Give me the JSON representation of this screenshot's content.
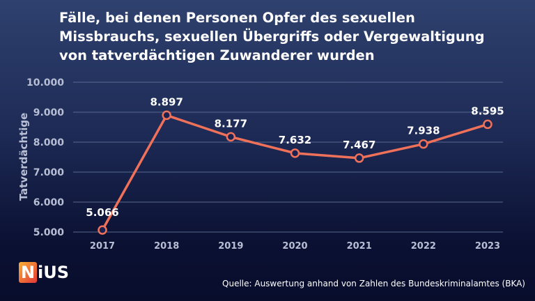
{
  "title_lines": [
    "Fälle, bei denen Personen Opfer des sexuellen",
    "Missbrauchs, sexuellen Übergriffs oder Vergewaltigung",
    "von tatverdächtigen Zuwanderer wurden"
  ],
  "logo": {
    "n": "N",
    "rest": "iUS"
  },
  "source": "Quelle: Auswertung anhand von Zahlen des Bundeskriminalamtes (BKA)",
  "colors": {
    "line": "#f0715a",
    "marker_fill": "#1a2350",
    "grid": "#5a6890",
    "tick": "#b8bfd4"
  },
  "chart_data": {
    "type": "line",
    "title": "Fälle, bei denen Personen Opfer des sexuellen Missbrauchs, sexuellen Übergriffs oder Vergewaltigung von tatverdächtigen Zuwanderer wurden",
    "xlabel": "",
    "ylabel": "Tatverdächtige",
    "categories": [
      "2017",
      "2018",
      "2019",
      "2020",
      "2021",
      "2022",
      "2023"
    ],
    "values": [
      5066,
      8897,
      8177,
      7632,
      7467,
      7938,
      8595
    ],
    "data_labels": [
      "5.066",
      "8.897",
      "8.177",
      "7.632",
      "7.467",
      "7.938",
      "8.595"
    ],
    "ylim": [
      5000,
      10000
    ],
    "yticks": [
      5000,
      6000,
      7000,
      8000,
      9000,
      10000
    ],
    "ytick_labels": [
      "5.000",
      "6.000",
      "7.000",
      "8.000",
      "9.000",
      "10.000"
    ],
    "grid": true
  }
}
